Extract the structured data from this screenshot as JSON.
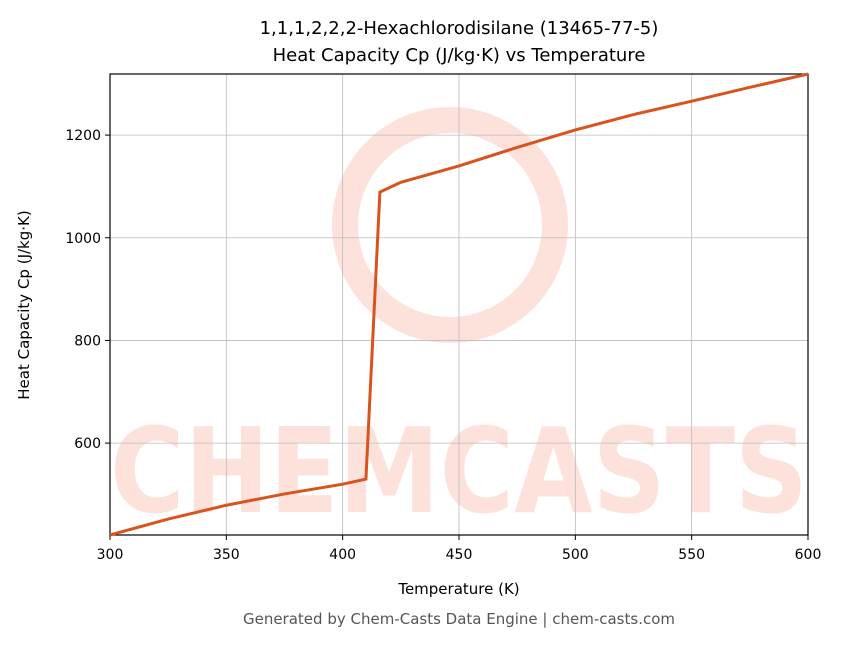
{
  "chart_data": {
    "type": "line",
    "title": "1,1,1,2,2,2-Hexachlorodisilane (13465-77-5)",
    "subtitle": "Heat Capacity Cp (J/kg·K) vs Temperature",
    "x_label": "Temperature (K)",
    "y_label": "Heat Capacity Cp (J/kg·K)",
    "footer": "Generated by Chem-Casts Data Engine | chem-casts.com",
    "watermark": "CHEMCASTS",
    "x": [
      300,
      325,
      350,
      375,
      400,
      410,
      416,
      425,
      450,
      475,
      500,
      525,
      550,
      575,
      600
    ],
    "series": [
      {
        "name": "Cp",
        "color": "#d9531e",
        "values": [
          421,
          452,
          479,
          501,
          520,
          530,
          1089,
          1108,
          1140,
          1176,
          1210,
          1240,
          1266,
          1293,
          1319
        ]
      }
    ],
    "xlim": [
      300,
      600
    ],
    "xticks": [
      300,
      350,
      400,
      450,
      500,
      550,
      600
    ],
    "ylim": [
      421,
      1319
    ],
    "yticks": [
      600,
      800,
      1000,
      1200
    ],
    "grid": true
  }
}
